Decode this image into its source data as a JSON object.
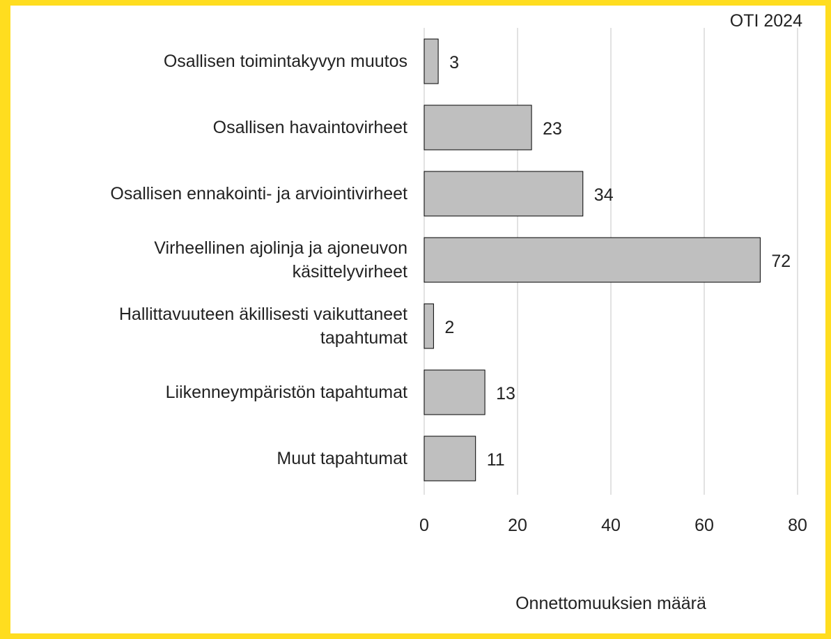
{
  "chart_data": {
    "type": "bar",
    "orientation": "horizontal",
    "title": "OTI 2024",
    "x_label": "Onnettomuuksien määrä",
    "categories": [
      "Osallisen toimintakyvyn muutos",
      "Osallisen havaintovirheet",
      "Osallisen ennakointi- ja arviointivirheet",
      "Virheellinen ajolinja ja ajoneuvon\nkäsittelyvirheet",
      "Hallittavuuteen äkillisesti vaikuttaneet\ntapahtumat",
      "Liikenneympäristön tapahtumat",
      "Muut tapahtumat"
    ],
    "values": [
      3,
      23,
      34,
      72,
      2,
      13,
      11
    ],
    "color": "#bfbfbf",
    "xlim": [
      0,
      80
    ],
    "xticks": [
      0,
      20,
      40,
      60,
      80
    ],
    "grid": true
  }
}
